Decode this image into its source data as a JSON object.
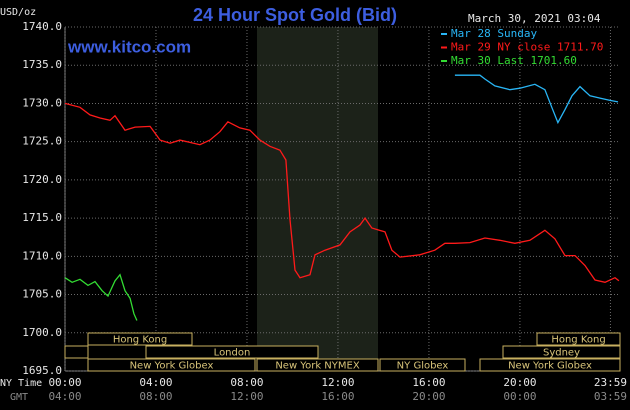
{
  "chart_data": {
    "type": "line",
    "title": "24 Hour Spot Gold (Bid)",
    "subtitle": "www.kitco.com",
    "y_label": "USD/oz",
    "timestamp": "March 30, 2021 03:04",
    "x_axis_label": "NY Time",
    "x2_axis_label": "GMT",
    "xlim": [
      0,
      24.4
    ],
    "ylim": [
      1695,
      1740
    ],
    "xticks": [
      {
        "value": 0,
        "label": "00:00"
      },
      {
        "value": 4,
        "label": "04:00"
      },
      {
        "value": 8,
        "label": "08:00"
      },
      {
        "value": 12,
        "label": "12:00"
      },
      {
        "value": 16,
        "label": "16:00"
      },
      {
        "value": 20,
        "label": "20:00"
      },
      {
        "value": 23.98,
        "label": "23:59"
      }
    ],
    "xticks_gmt": [
      "04:00",
      "08:00",
      "12:00",
      "16:00",
      "20:00",
      "00:00",
      "03:59"
    ],
    "yticks": [
      {
        "value": 1695,
        "label": "1695.0"
      },
      {
        "value": 1700,
        "label": "1700.0"
      },
      {
        "value": 1705,
        "label": "1705.0"
      },
      {
        "value": 1710,
        "label": "1710.0"
      },
      {
        "value": 1715,
        "label": "1715.0"
      },
      {
        "value": 1720,
        "label": "1720.0"
      },
      {
        "value": 1725,
        "label": "1725.0"
      },
      {
        "value": 1730,
        "label": "1730.0"
      },
      {
        "value": 1735,
        "label": "1735.0"
      },
      {
        "value": 1740,
        "label": "1740.0"
      }
    ],
    "grid": true,
    "sessions": [
      "Hong Kong",
      "London",
      "New York Globex",
      "New York NYMEX",
      "NY Globex",
      "Hong Kong",
      "Sydney",
      "New York Globex"
    ],
    "series": [
      {
        "name": "Mar 28 Sunday",
        "color": "#29b6f6",
        "x": [
          17.14,
          18.24,
          18.46,
          18.9,
          19.56,
          20.0,
          20.66,
          21.1,
          21.4,
          21.67,
          21.98,
          22.29,
          22.64,
          23.08,
          23.52,
          23.96,
          24.31
        ],
        "values": [
          1733.7,
          1733.7,
          1733.2,
          1732.3,
          1731.8,
          1732.0,
          1732.5,
          1731.8,
          1729.5,
          1727.5,
          1729.2,
          1731.0,
          1732.2,
          1731.0,
          1730.7,
          1730.4,
          1730.2
        ]
      },
      {
        "name": "Mar 29 NY close 1711.70",
        "color": "#ff1a1a",
        "x": [
          0,
          0.66,
          1.1,
          1.54,
          1.98,
          2.2,
          2.64,
          3.08,
          3.74,
          4.18,
          4.62,
          5.05,
          5.49,
          5.93,
          6.37,
          6.81,
          7.16,
          7.69,
          8.13,
          8.57,
          9.01,
          9.45,
          9.71,
          9.89,
          10.11,
          10.33,
          10.77,
          10.99,
          11.43,
          12.09,
          12.53,
          12.97,
          13.19,
          13.49,
          14.07,
          14.37,
          14.73,
          15.6,
          16.26,
          16.7,
          17.14,
          17.8,
          18.46,
          19.12,
          19.78,
          20.44,
          21.1,
          21.54,
          21.98,
          22.42,
          22.86,
          23.3,
          23.74,
          24.18,
          24.35
        ],
        "values": [
          1730.0,
          1729.5,
          1728.5,
          1728.1,
          1727.8,
          1728.4,
          1726.5,
          1726.9,
          1727.0,
          1725.2,
          1724.8,
          1725.2,
          1724.9,
          1724.6,
          1725.2,
          1726.3,
          1727.6,
          1726.8,
          1726.5,
          1725.2,
          1724.4,
          1723.9,
          1722.6,
          1714.8,
          1708.2,
          1707.2,
          1707.6,
          1710.2,
          1710.8,
          1711.5,
          1713.2,
          1714.1,
          1715.0,
          1713.7,
          1713.2,
          1710.8,
          1709.9,
          1710.2,
          1710.8,
          1711.7,
          1711.7,
          1711.8,
          1712.4,
          1712.1,
          1711.7,
          1712.1,
          1713.4,
          1712.3,
          1710.1,
          1710.1,
          1708.8,
          1706.9,
          1706.6,
          1707.2,
          1706.8
        ]
      },
      {
        "name": "Mar 30 Last 1701.60",
        "color": "#33dd33",
        "x": [
          0,
          0.31,
          0.66,
          1.01,
          1.32,
          1.63,
          1.89,
          2.2,
          2.42,
          2.64,
          2.86,
          3.03,
          3.16
        ],
        "values": [
          1707.2,
          1706.6,
          1707.0,
          1706.2,
          1706.7,
          1705.5,
          1704.8,
          1706.8,
          1707.6,
          1705.5,
          1704.5,
          1702.5,
          1701.6
        ]
      }
    ]
  }
}
